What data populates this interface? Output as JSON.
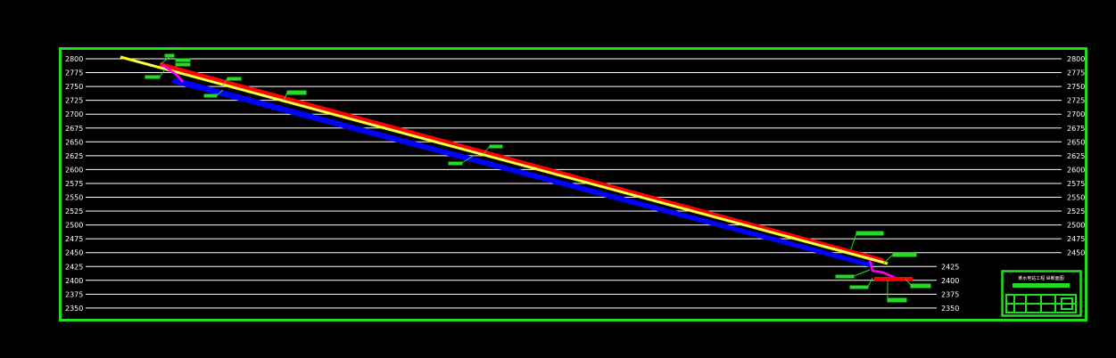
{
  "drawing": {
    "elevation_ticks_left": [
      "2800",
      "2775",
      "2750",
      "2725",
      "2700",
      "2675",
      "2650",
      "2625",
      "2600",
      "2575",
      "2550",
      "2525",
      "2500",
      "2475",
      "2450",
      "2425",
      "2400",
      "2375",
      "2350"
    ],
    "elevation_ticks_right": [
      "2800",
      "2775",
      "2750",
      "2725",
      "2700",
      "2675",
      "2650",
      "2625",
      "2600",
      "2575",
      "2550",
      "2525",
      "2500",
      "2475",
      "2450"
    ],
    "elevation_ticks_mid": [
      "2425",
      "2400",
      "2375",
      "2350"
    ],
    "colors": {
      "frame": "#22dd22",
      "grid": "#ffffff",
      "surface": "#ffff00",
      "upper_profile": "#ff0000",
      "lower_profile": "#0000ff",
      "terrain_marks": "#ff00ff",
      "callouts": "#22dd22"
    },
    "title_block": {
      "heading": "某水电站工程 纵断面图"
    }
  }
}
